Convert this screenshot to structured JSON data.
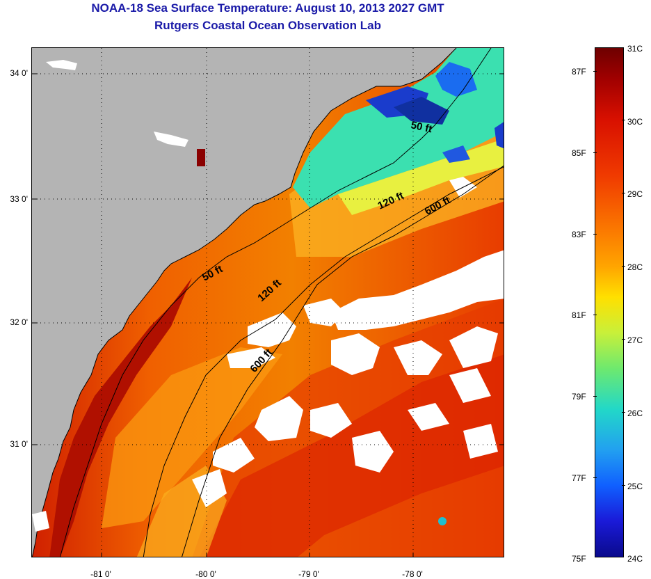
{
  "header": {
    "title": "NOAA-18 Sea Surface Temperature:  August 10, 2013 2027 GMT",
    "subtitle": "Rutgers Coastal Ocean Observation Lab"
  },
  "map": {
    "lat_labels": [
      "34 0'",
      "33 0'",
      "32 0'",
      "31 0'"
    ],
    "lon_labels": [
      "-81 0'",
      "-80 0'",
      "-79 0'",
      "-78 0'"
    ],
    "isobath_labels": [
      "50 ft",
      "120 ft",
      "600 ft",
      "50 ft",
      "120 ft",
      "600 ft"
    ],
    "colors": {
      "land": "#b4b4b4",
      "cloud": "#ffffff",
      "warm_water": "#f05a00",
      "hot_water": "#c81400",
      "cool_water": "#ffd020",
      "cold_water": "#20e0c0",
      "coldest_water": "#1a3ccc"
    }
  },
  "colorbar": {
    "celsius_labels": [
      "31C",
      "30C",
      "29C",
      "28C",
      "27C",
      "26C",
      "25C",
      "24C"
    ],
    "fahrenheit_labels": [
      "87F",
      "85F",
      "83F",
      "81F",
      "79F",
      "77F",
      "75F"
    ],
    "range_c": [
      24,
      31
    ],
    "range_f": [
      75,
      88
    ]
  }
}
